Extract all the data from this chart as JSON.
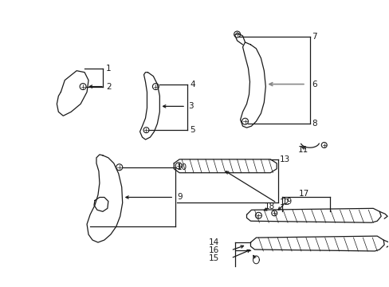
{
  "bg_color": "#ffffff",
  "fig_width": 4.89,
  "fig_height": 3.6,
  "dpi": 100,
  "line_color": "#1a1a1a",
  "gray_color": "#888888"
}
